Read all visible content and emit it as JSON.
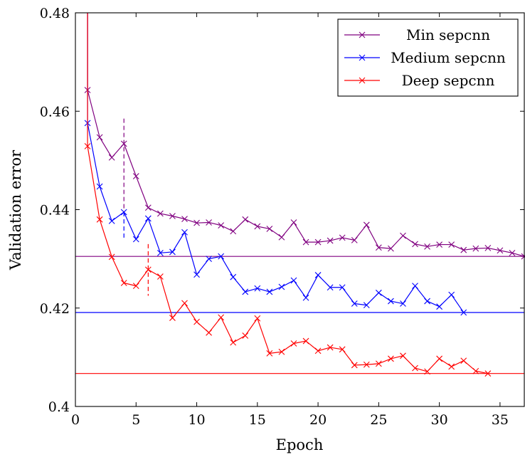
{
  "chart_data": {
    "type": "line",
    "title": "",
    "xlabel": "Epoch",
    "ylabel": "Validation error",
    "xlim": [
      0,
      37
    ],
    "ylim": [
      0.4,
      0.48
    ],
    "xticks": [
      0,
      5,
      10,
      15,
      20,
      25,
      30,
      35
    ],
    "xtick_labels": [
      "0",
      "5",
      "10",
      "15",
      "20",
      "25",
      "30",
      "35"
    ],
    "yticks": [
      0.4,
      0.42,
      0.44,
      0.46,
      0.48
    ],
    "ytick_labels": [
      "0.4",
      "0.42",
      "0.44",
      "0.46",
      "0.48"
    ],
    "grid": false,
    "legend_position": "top-right",
    "series": [
      {
        "name": "Min sepcnn",
        "color": "#800080",
        "x": [
          1,
          2,
          3,
          4,
          5,
          6,
          7,
          8,
          9,
          10,
          11,
          12,
          13,
          14,
          15,
          16,
          17,
          18,
          19,
          20,
          21,
          22,
          23,
          24,
          25,
          26,
          27,
          28,
          29,
          30,
          31,
          32,
          33,
          34,
          35,
          36,
          37
        ],
        "values": [
          0.4643,
          0.4547,
          0.4506,
          0.4534,
          0.4468,
          0.4404,
          0.4392,
          0.4387,
          0.4381,
          0.4373,
          0.4374,
          0.4368,
          0.4356,
          0.438,
          0.4366,
          0.4361,
          0.4344,
          0.4374,
          0.4334,
          0.4334,
          0.4337,
          0.4343,
          0.4338,
          0.4369,
          0.4323,
          0.4321,
          0.4347,
          0.433,
          0.4325,
          0.4329,
          0.4329,
          0.4318,
          0.4321,
          0.4322,
          0.4317,
          0.4312,
          0.4305
        ]
      },
      {
        "name": "Medium sepcnn",
        "color": "#0000ff",
        "x": [
          1,
          2,
          3,
          4,
          5,
          6,
          7,
          8,
          9,
          10,
          11,
          12,
          13,
          14,
          15,
          16,
          17,
          18,
          19,
          20,
          21,
          22,
          23,
          24,
          25,
          26,
          27,
          28,
          29,
          30,
          31,
          32
        ],
        "values": [
          0.4576,
          0.4447,
          0.4377,
          0.4395,
          0.434,
          0.4382,
          0.4312,
          0.4314,
          0.4354,
          0.4268,
          0.43,
          0.4305,
          0.4263,
          0.4233,
          0.424,
          0.4233,
          0.4243,
          0.4256,
          0.4221,
          0.4267,
          0.4242,
          0.4242,
          0.4209,
          0.4206,
          0.4231,
          0.4214,
          0.4209,
          0.4245,
          0.4214,
          0.4203,
          0.4227,
          0.4191
        ]
      },
      {
        "name": "Deep sepcnn",
        "color": "#ff0000",
        "x": [
          1,
          2,
          3,
          4,
          5,
          6,
          7,
          8,
          9,
          10,
          11,
          12,
          13,
          14,
          15,
          16,
          17,
          18,
          19,
          20,
          21,
          22,
          23,
          24,
          25,
          26,
          27,
          28,
          29,
          30,
          31,
          32,
          33,
          34
        ],
        "values": [
          0.4529,
          0.438,
          0.4304,
          0.4251,
          0.4245,
          0.4278,
          0.4264,
          0.418,
          0.421,
          0.4172,
          0.415,
          0.4181,
          0.413,
          0.4144,
          0.4179,
          0.4108,
          0.4111,
          0.4128,
          0.4133,
          0.4113,
          0.412,
          0.4116,
          0.4084,
          0.4085,
          0.4087,
          0.4097,
          0.4103,
          0.4078,
          0.4071,
          0.4097,
          0.4081,
          0.4093,
          0.4072,
          0.4067
        ]
      }
    ],
    "initial_points": [
      {
        "series": "Min sepcnn",
        "x": 1,
        "value": 0.48
      },
      {
        "series": "Medium sepcnn",
        "x": 1,
        "value": 0.48
      },
      {
        "series": "Deep sepcnn",
        "x": 1,
        "value": 0.48
      }
    ],
    "baselines": [
      {
        "series": "Min sepcnn",
        "value": 0.4305
      },
      {
        "series": "Medium sepcnn",
        "value": 0.4191
      },
      {
        "series": "Deep sepcnn",
        "value": 0.4067
      }
    ],
    "markers": [
      {
        "series": "Min sepcnn",
        "x": 4,
        "from": 0.4585,
        "to": 0.4395,
        "style": "dashed"
      },
      {
        "series": "Medium sepcnn",
        "x": 4,
        "from": 0.4395,
        "to": 0.4343,
        "style": "dashed"
      },
      {
        "series": "Deep sepcnn",
        "x": 6,
        "from": 0.433,
        "to": 0.4225,
        "style": "dashed"
      }
    ]
  }
}
